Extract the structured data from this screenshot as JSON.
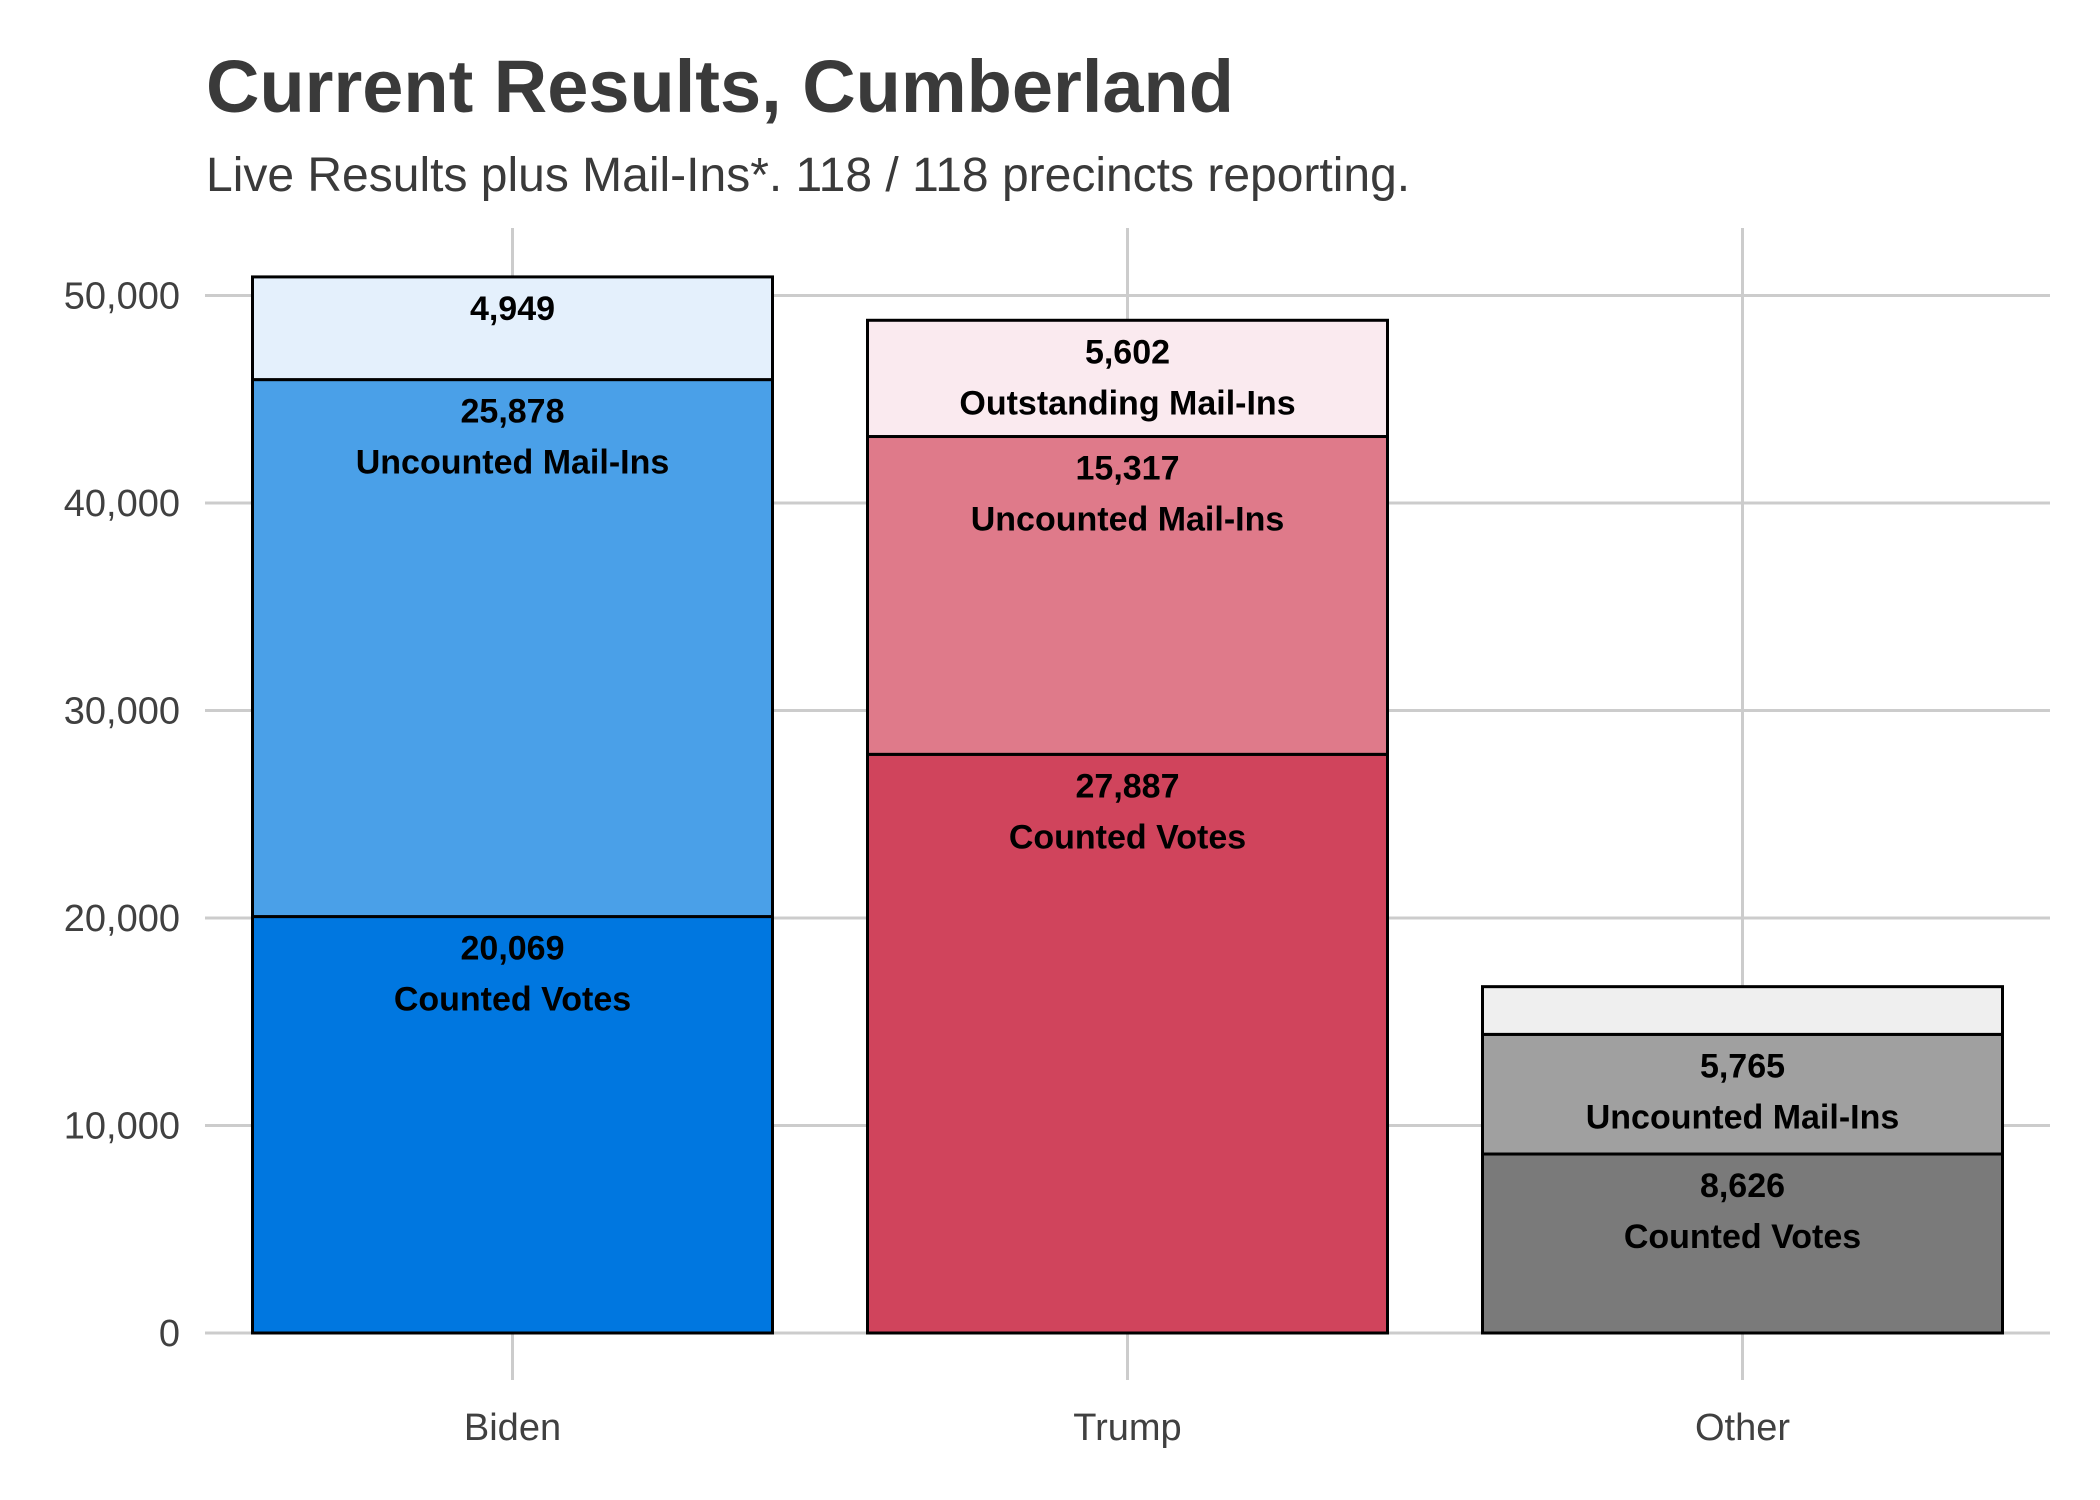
{
  "chart_data": {
    "type": "bar",
    "stacked": true,
    "title": "Current Results, Cumberland",
    "subtitle": "Live Results plus Mail-Ins*. 118 / 118 precincts reporting.",
    "xlabel": "",
    "ylabel": "",
    "ylim": [
      0,
      53500
    ],
    "yticks": [
      0,
      10000,
      20000,
      30000,
      40000,
      50000
    ],
    "ytick_labels": [
      "0",
      "10,000",
      "20,000",
      "30,000",
      "40,000",
      "50,000"
    ],
    "grid": true,
    "categories": [
      "Biden",
      "Trump",
      "Other"
    ],
    "bars": [
      {
        "category": "Biden",
        "segments": [
          {
            "value": 20069,
            "value_label": "20,069",
            "label": "Counted Votes",
            "color": "#0077e0"
          },
          {
            "value": 25878,
            "value_label": "25,878",
            "label": "Uncounted Mail-Ins",
            "color": "#4aa0e8"
          },
          {
            "value": 4949,
            "value_label": "4,949",
            "label": "",
            "color": "#e4f0fc"
          }
        ]
      },
      {
        "category": "Trump",
        "segments": [
          {
            "value": 27887,
            "value_label": "27,887",
            "label": "Counted Votes",
            "color": "#d0445c"
          },
          {
            "value": 15317,
            "value_label": "15,317",
            "label": "Uncounted Mail-Ins",
            "color": "#df7a8a"
          },
          {
            "value": 5602,
            "value_label": "5,602",
            "label": "Outstanding Mail-Ins",
            "color": "#faeaef"
          }
        ]
      },
      {
        "category": "Other",
        "segments": [
          {
            "value": 8626,
            "value_label": "8,626",
            "label": "Counted Votes",
            "color": "#7a7a7a"
          },
          {
            "value": 5765,
            "value_label": "5,765",
            "label": "Uncounted Mail-Ins",
            "color": "#a0a0a0"
          },
          {
            "value": 2300,
            "value_label": "",
            "label": "",
            "color": "#efefef"
          }
        ]
      }
    ]
  }
}
